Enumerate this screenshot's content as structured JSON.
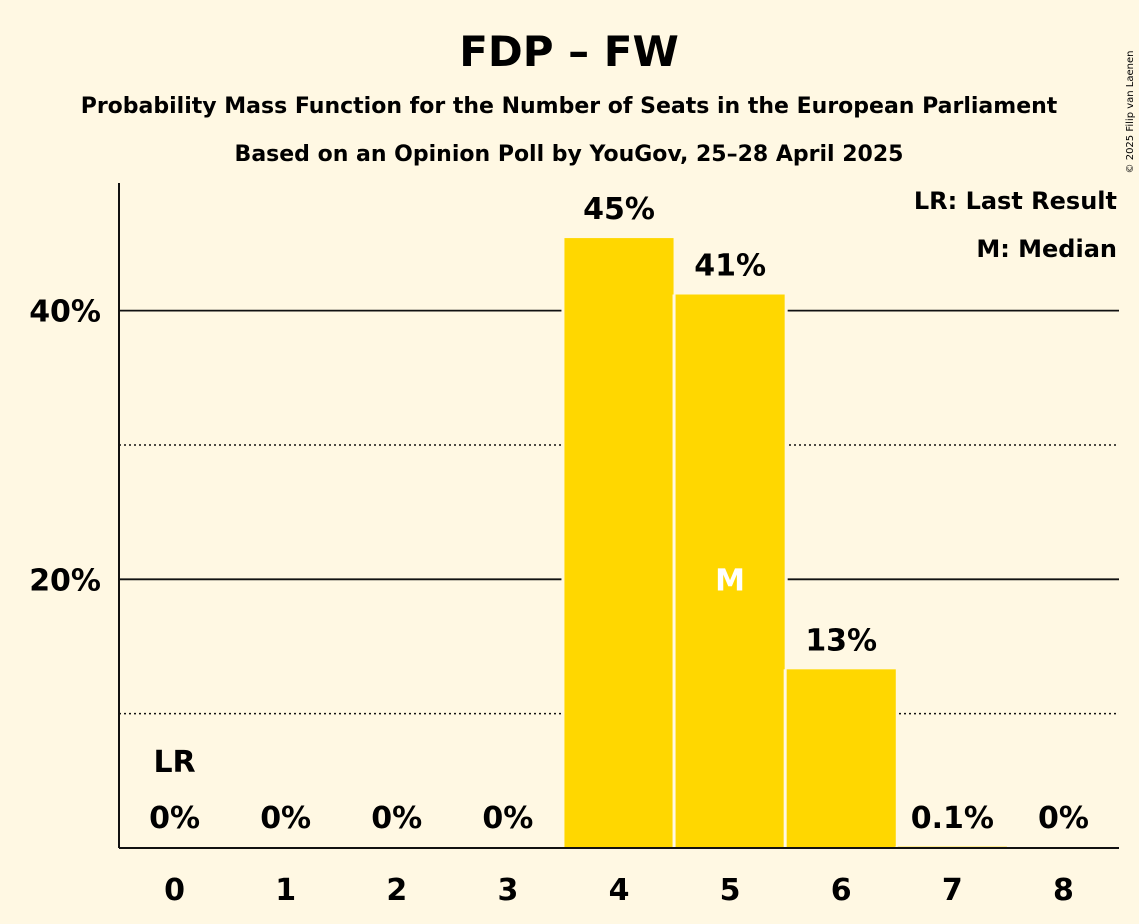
{
  "chart_data": {
    "type": "bar",
    "title": "FDP – FW",
    "subtitle_1": "Probability Mass Function for the Number of Seats in the European Parliament",
    "subtitle_2": "Based on an Opinion Poll by YouGov, 25–28 April 2025",
    "categories": [
      "0",
      "1",
      "2",
      "3",
      "4",
      "5",
      "6",
      "7",
      "8"
    ],
    "values": [
      0,
      0,
      0,
      0,
      45.4,
      41.2,
      13.3,
      0.1,
      0
    ],
    "data_labels": [
      "0%",
      "0%",
      "0%",
      "0%",
      "45%",
      "41%",
      "13%",
      "0.1%",
      "0%"
    ],
    "ylim": [
      0,
      49.5
    ],
    "yticks_major": [
      {
        "value": 20,
        "label": "20%"
      },
      {
        "value": 40,
        "label": "40%"
      }
    ],
    "yticks_minor": [
      10,
      30
    ],
    "grid": true,
    "last_result": {
      "category_index": 0,
      "label": "LR"
    },
    "median": {
      "category_index": 5,
      "label": "M"
    },
    "legend": {
      "placement": "top-right",
      "items": [
        "LR: Last Result",
        "M: Median"
      ]
    },
    "colors": {
      "bar": "#FFD700",
      "background": "#FFF8E3",
      "text": "#111111",
      "median_label": "#FFFFFF"
    }
  },
  "copyright": "© 2025 Filip van Laenen"
}
